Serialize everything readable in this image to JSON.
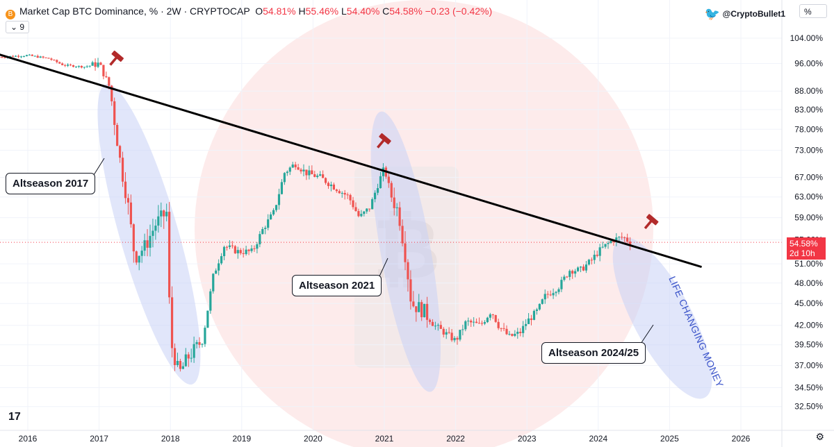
{
  "header": {
    "title": "Market Cap BTC Dominance, % · 2W · CRYPTOCAP",
    "open_label": "O",
    "open": "54.81%",
    "high_label": "H",
    "high": "55.46%",
    "low_label": "L",
    "low": "54.40%",
    "close_label": "C",
    "close": "54.58%",
    "change": "−0.23 (−0.42%)",
    "indicator_count": "9",
    "symbol_icon": "B"
  },
  "twitter_handle": "@CryptoBullet1",
  "scale_button": "%",
  "last_price": {
    "value": "54.58%",
    "countdown": "2d 10h"
  },
  "callouts": {
    "a2017": "Altseason 2017",
    "a2021": "Altseason 2021",
    "a2024": "Altseason 2024/25"
  },
  "rotated_note": "LIFE CHANGING MONEY",
  "colors": {
    "up": "#26a69a",
    "down": "#ef5350",
    "trend": "#000000",
    "ellipse": "#c9d2f5",
    "bg_circle": "#fde8e8"
  },
  "chart_data": {
    "type": "candlestick",
    "y_scale": "log",
    "ylim": [
      31.5,
      107
    ],
    "y_ticks": [
      "104.00%",
      "96.00%",
      "88.00%",
      "83.00%",
      "78.00%",
      "73.00%",
      "67.00%",
      "63.00%",
      "59.00%",
      "55.00%",
      "51.00%",
      "48.00%",
      "45.00%",
      "42.00%",
      "39.50%",
      "37.00%",
      "34.50%",
      "32.50%"
    ],
    "x_ticks": [
      "2016",
      "2017",
      "2018",
      "2019",
      "2020",
      "2021",
      "2022",
      "2023",
      "2024",
      "2025",
      "2026"
    ],
    "approx_close_path": [
      [
        2015.6,
        98.0
      ],
      [
        2016.0,
        98.5
      ],
      [
        2016.3,
        97.5
      ],
      [
        2016.5,
        95.5
      ],
      [
        2016.8,
        95.0
      ],
      [
        2017.0,
        96.0
      ],
      [
        2017.15,
        89.0
      ],
      [
        2017.3,
        70.0
      ],
      [
        2017.4,
        62.0
      ],
      [
        2017.5,
        52.0
      ],
      [
        2017.65,
        54.0
      ],
      [
        2017.8,
        58.0
      ],
      [
        2017.95,
        60.0
      ],
      [
        2018.0,
        40.0
      ],
      [
        2018.12,
        36.0
      ],
      [
        2018.25,
        38.0
      ],
      [
        2018.45,
        40.0
      ],
      [
        2018.6,
        49.0
      ],
      [
        2018.75,
        54.0
      ],
      [
        2018.95,
        53.0
      ],
      [
        2019.15,
        53.0
      ],
      [
        2019.3,
        57.0
      ],
      [
        2019.45,
        60.0
      ],
      [
        2019.6,
        68.0
      ],
      [
        2019.75,
        70.0
      ],
      [
        2019.9,
        68.0
      ],
      [
        2020.1,
        67.0
      ],
      [
        2020.3,
        65.0
      ],
      [
        2020.5,
        63.0
      ],
      [
        2020.65,
        59.0
      ],
      [
        2020.8,
        61.0
      ],
      [
        2020.92,
        66.0
      ],
      [
        2021.0,
        69.0
      ],
      [
        2021.1,
        63.0
      ],
      [
        2021.2,
        60.0
      ],
      [
        2021.3,
        52.0
      ],
      [
        2021.38,
        45.0
      ],
      [
        2021.55,
        44.0
      ],
      [
        2021.7,
        42.0
      ],
      [
        2021.85,
        41.0
      ],
      [
        2022.0,
        40.0
      ],
      [
        2022.15,
        42.5
      ],
      [
        2022.35,
        42.0
      ],
      [
        2022.5,
        44.0
      ],
      [
        2022.6,
        42.0
      ],
      [
        2022.75,
        40.5
      ],
      [
        2022.9,
        41.0
      ],
      [
        2023.0,
        42.5
      ],
      [
        2023.15,
        44.0
      ],
      [
        2023.25,
        46.0
      ],
      [
        2023.45,
        47.5
      ],
      [
        2023.6,
        50.0
      ],
      [
        2023.75,
        50.0
      ],
      [
        2023.9,
        51.5
      ],
      [
        2024.0,
        53.0
      ],
      [
        2024.1,
        54.0
      ],
      [
        2024.2,
        55.0
      ],
      [
        2024.35,
        55.5
      ],
      [
        2024.45,
        54.58
      ]
    ],
    "trendline": {
      "from": [
        2015.45,
        99.8
      ],
      "to": [
        2025.45,
        50.5
      ]
    },
    "last_close": 54.58,
    "annotations": [
      "Altseason 2017",
      "Altseason 2021",
      "Altseason 2024/25",
      "LIFE CHANGING MONEY"
    ]
  }
}
